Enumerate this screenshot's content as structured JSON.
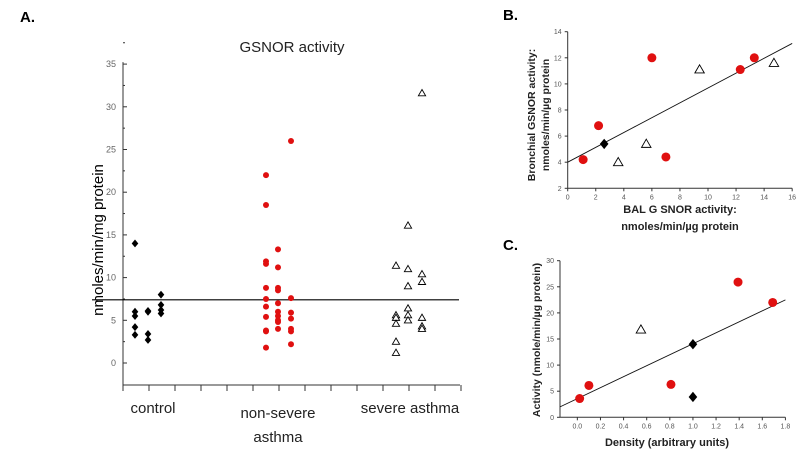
{
  "chart_data": [
    {
      "panel": "A.",
      "type": "scatter",
      "title": "GSNOR activity",
      "ylabel": "nmoles/min/mg protein",
      "ylim": [
        -2.5,
        35
      ],
      "yticks": [
        0,
        5,
        10,
        15,
        20,
        25,
        30,
        35
      ],
      "reference_line": 7.4,
      "groups": [
        {
          "name": "control",
          "label_lines": [
            "control"
          ],
          "marker": "diamond",
          "color": "#000000",
          "columns": [
            [
              14,
              6,
              5.5,
              4.2,
              3.3
            ],
            [
              6.1,
              6,
              3.4,
              2.7
            ],
            [
              8,
              6.8,
              6.2,
              5.8
            ]
          ]
        },
        {
          "name": "non-severe asthma",
          "label_lines": [
            "non-severe",
            "asthma"
          ],
          "marker": "circle",
          "color": "#e01010",
          "columns": [
            [
              22,
              18.5,
              11.9,
              11.6,
              8.8,
              7.5,
              6.6,
              5.4,
              3.8,
              3.7,
              1.8
            ],
            [
              13.3,
              11.2,
              8.8,
              8.5,
              7,
              6,
              5.5,
              5,
              4.8,
              4
            ],
            [
              26,
              7.6,
              5.9,
              5.2,
              4,
              3.7,
              2.2
            ]
          ]
        },
        {
          "name": "severe asthma",
          "label_lines": [
            "severe asthma"
          ],
          "marker": "triangle-open",
          "color": "#000000",
          "columns": [
            [
              11.4,
              5.6,
              5.3,
              4.6,
              2.5,
              1.2
            ],
            [
              16.1,
              11,
              9,
              6.4,
              5.6,
              5.0
            ],
            [
              31.6,
              10.4,
              9.5,
              5.3,
              4.3,
              4.0
            ]
          ]
        }
      ]
    },
    {
      "panel": "B.",
      "type": "scatter",
      "xlabel_lines": [
        "BAL G SNOR activity:",
        "nmoles/min/µg protein"
      ],
      "ylabel_lines": [
        "Bronchial GSNOR activity:",
        "nmoles/min/µg protein"
      ],
      "xlim": [
        0,
        16
      ],
      "ylim": [
        2,
        14
      ],
      "xticks": [
        0,
        2,
        4,
        6,
        8,
        10,
        12,
        14,
        16
      ],
      "yticks": [
        2,
        4,
        6,
        8,
        10,
        12,
        14
      ],
      "fit_line": [
        [
          0,
          4
        ],
        [
          16,
          13.1
        ]
      ],
      "series": [
        {
          "name": "non-severe asthma",
          "marker": "circle",
          "color": "#e01010",
          "points": [
            [
              1.1,
              4.2
            ],
            [
              2.2,
              6.8
            ],
            [
              6,
              12
            ],
            [
              7,
              4.4
            ],
            [
              12.3,
              11.1
            ],
            [
              13.3,
              12
            ]
          ]
        },
        {
          "name": "severe asthma",
          "marker": "triangle-open",
          "color": "#000000",
          "points": [
            [
              3.6,
              4
            ],
            [
              5.6,
              5.4
            ],
            [
              9.4,
              11.1
            ],
            [
              14.7,
              11.6
            ]
          ]
        },
        {
          "name": "control",
          "marker": "diamond",
          "color": "#000000",
          "points": [
            [
              2.6,
              5.4
            ]
          ]
        }
      ]
    },
    {
      "panel": "C.",
      "type": "scatter",
      "xlabel_lines": [
        "Density (arbitrary units)"
      ],
      "ylabel_lines": [
        "Activity (nmole/min/µg protein)"
      ],
      "xlim": [
        -0.15,
        1.8
      ],
      "ylim": [
        0,
        30
      ],
      "xticks": [
        "0.0",
        "0.2",
        "0.4",
        "0.6",
        "0.8",
        "1.0",
        "1.2",
        "1.4",
        "1.6",
        "1.8"
      ],
      "yticks": [
        0,
        5,
        10,
        15,
        20,
        25,
        30
      ],
      "fit_line": [
        [
          -0.15,
          2
        ],
        [
          1.8,
          22.5
        ]
      ],
      "series": [
        {
          "name": "non-severe asthma",
          "marker": "circle",
          "color": "#e01010",
          "points": [
            [
              0.02,
              3.6
            ],
            [
              0.1,
              6.1
            ],
            [
              0.81,
              6.3
            ],
            [
              1.39,
              25.9
            ],
            [
              1.69,
              22
            ]
          ]
        },
        {
          "name": "severe asthma",
          "marker": "triangle-open",
          "color": "#000000",
          "points": [
            [
              0.55,
              16.8
            ]
          ]
        },
        {
          "name": "control",
          "marker": "diamond",
          "color": "#000000",
          "points": [
            [
              1.0,
              14
            ],
            [
              1.0,
              3.9
            ]
          ]
        }
      ]
    }
  ]
}
